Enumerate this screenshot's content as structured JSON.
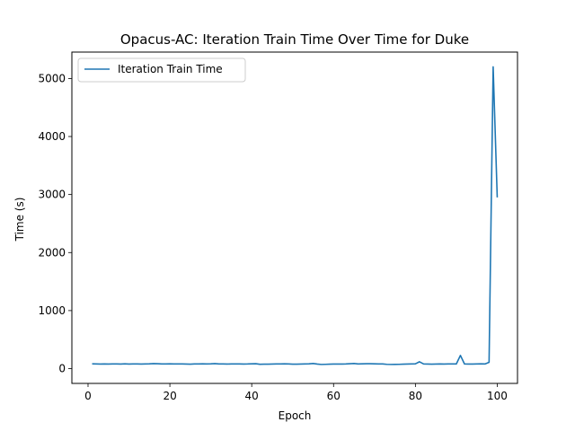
{
  "chart_data": {
    "type": "line",
    "title": "Opacus-AC: Iteration Train Time Over Time for Duke",
    "xlabel": "Epoch",
    "ylabel": "Time (s)",
    "xlim": [
      -3.95,
      104.95
    ],
    "ylim": [
      -255,
      5455
    ],
    "xticks": [
      0,
      20,
      40,
      60,
      80,
      100
    ],
    "yticks": [
      0,
      1000,
      2000,
      3000,
      4000,
      5000
    ],
    "grid": false,
    "legend_position": "top-left",
    "series": [
      {
        "name": "Iteration Train Time",
        "color": "#1f77b4",
        "x": [
          1,
          2,
          3,
          4,
          5,
          6,
          7,
          8,
          9,
          10,
          11,
          12,
          13,
          14,
          15,
          16,
          17,
          18,
          19,
          20,
          21,
          22,
          23,
          24,
          25,
          26,
          27,
          28,
          29,
          30,
          31,
          32,
          33,
          34,
          35,
          36,
          37,
          38,
          39,
          40,
          41,
          42,
          43,
          44,
          45,
          46,
          47,
          48,
          49,
          50,
          51,
          52,
          53,
          54,
          55,
          56,
          57,
          58,
          59,
          60,
          61,
          62,
          63,
          64,
          65,
          66,
          67,
          68,
          69,
          70,
          71,
          72,
          73,
          74,
          75,
          76,
          77,
          78,
          79,
          80,
          81,
          82,
          83,
          84,
          85,
          86,
          87,
          88,
          89,
          90,
          91,
          92,
          93,
          94,
          95,
          96,
          97,
          98,
          99,
          100
        ],
        "values": [
          82,
          80,
          79,
          80,
          79,
          80,
          80,
          79,
          82,
          79,
          80,
          81,
          79,
          80,
          82,
          86,
          85,
          80,
          80,
          82,
          80,
          80,
          81,
          79,
          77,
          80,
          81,
          82,
          80,
          82,
          86,
          80,
          81,
          79,
          80,
          80,
          81,
          79,
          80,
          83,
          85,
          75,
          76,
          77,
          79,
          80,
          81,
          82,
          80,
          77,
          76,
          78,
          80,
          83,
          88,
          79,
          72,
          74,
          76,
          78,
          79,
          78,
          80,
          84,
          88,
          81,
          83,
          85,
          84,
          82,
          80,
          81,
          74,
          72,
          73,
          74,
          76,
          78,
          80,
          82,
          118,
          80,
          78,
          77,
          78,
          80,
          79,
          80,
          81,
          80,
          228,
          80,
          78,
          79,
          81,
          82,
          80,
          108,
          5200,
          2950
        ]
      }
    ]
  }
}
